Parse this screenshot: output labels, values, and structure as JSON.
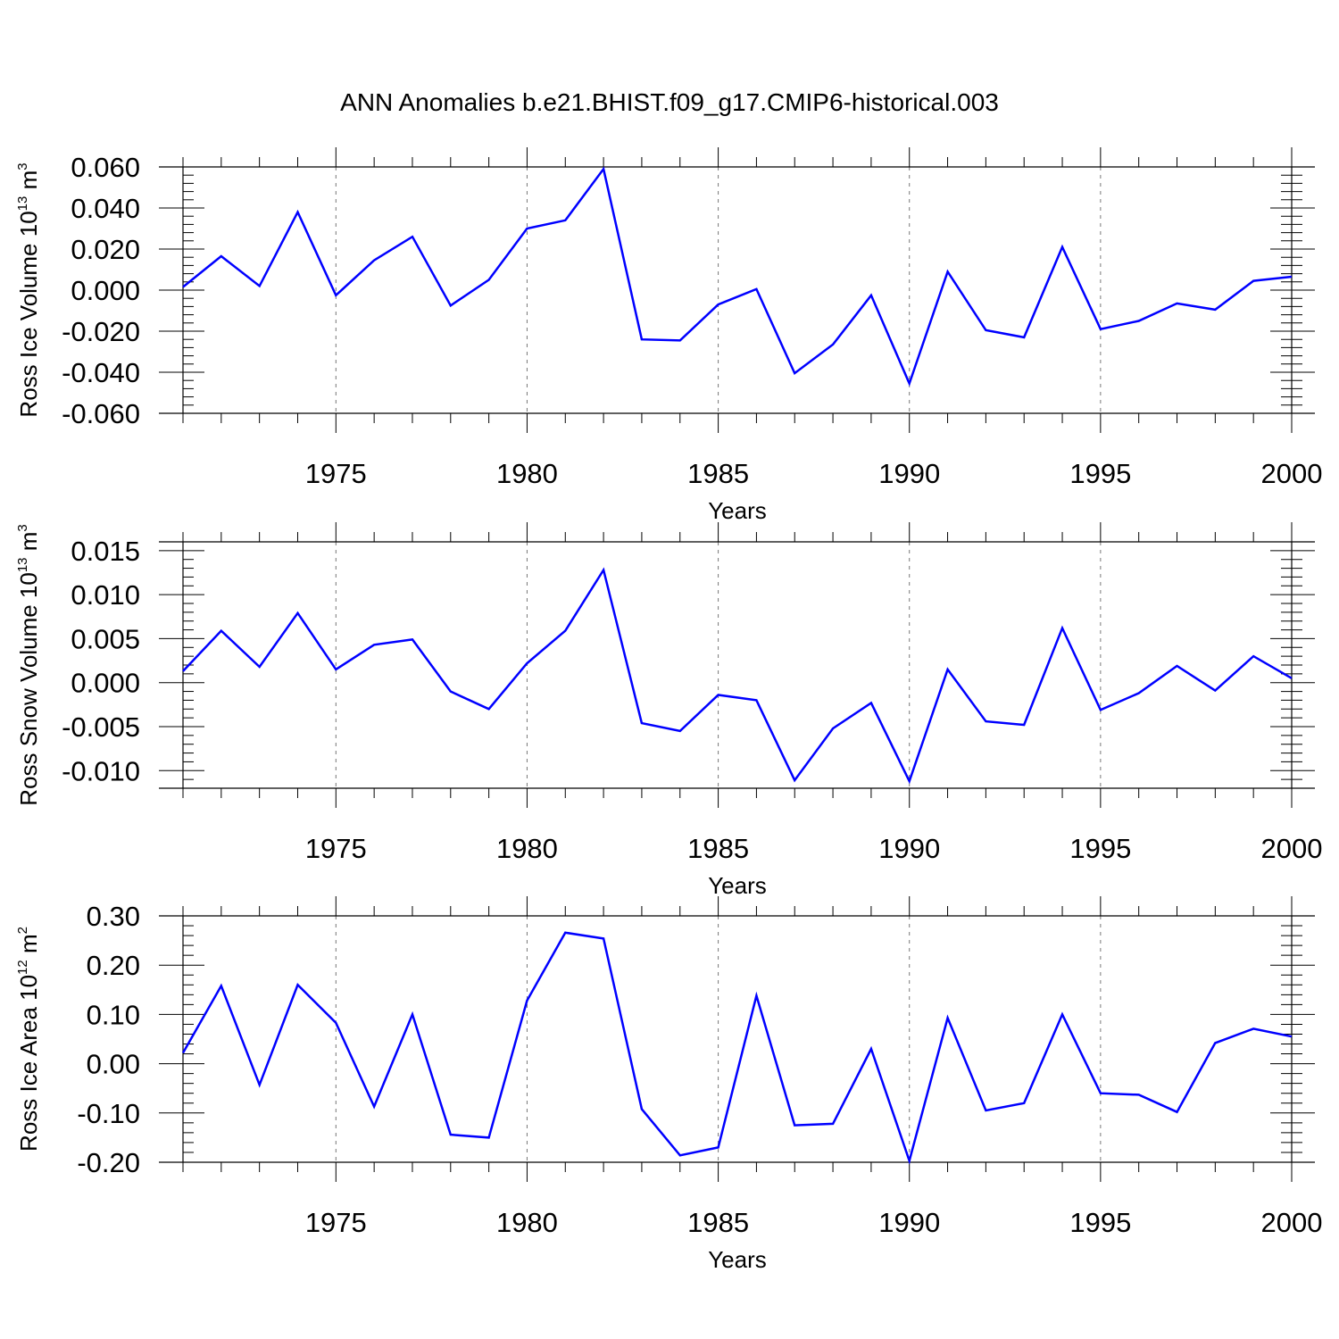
{
  "title": "ANN Anomalies b.e21.BHIST.f09_g17.CMIP6-historical.003",
  "chart_data": [
    {
      "type": "line",
      "ylabel": "Ross Ice Volume 10",
      "ylabel_exp": "13",
      "ylabel_unit": " m",
      "ylabel_unit_exp": "3",
      "xlabel": "Years",
      "xlim": [
        1971,
        2000
      ],
      "ylim": [
        -0.06,
        0.06
      ],
      "yticks": [
        -0.06,
        -0.04,
        -0.02,
        0.0,
        0.02,
        0.04,
        0.06
      ],
      "ytick_labels": [
        "-0.060",
        "-0.040",
        "-0.020",
        "0.000",
        "0.020",
        "0.040",
        "0.060"
      ],
      "xticks": [
        1975,
        1980,
        1985,
        1990,
        1995,
        2000
      ],
      "xtick_labels": [
        "1975",
        "1980",
        "1985",
        "1990",
        "1995",
        "2000"
      ],
      "grid": "vertical-dashed",
      "color": "#0000ff",
      "x": [
        1971,
        1972,
        1973,
        1974,
        1975,
        1976,
        1977,
        1978,
        1979,
        1980,
        1981,
        1982,
        1983,
        1984,
        1985,
        1986,
        1987,
        1988,
        1989,
        1990,
        1991,
        1992,
        1993,
        1994,
        1995,
        1996,
        1997,
        1998,
        1999,
        2000
      ],
      "values": [
        0.0015,
        0.0165,
        0.002,
        0.038,
        -0.0025,
        0.0145,
        0.026,
        -0.0075,
        0.005,
        0.03,
        0.034,
        0.059,
        -0.024,
        -0.0245,
        -0.007,
        0.0005,
        -0.0405,
        -0.0265,
        -0.0025,
        -0.0455,
        0.009,
        -0.0195,
        -0.023,
        0.021,
        -0.019,
        -0.015,
        -0.0065,
        -0.0095,
        0.0045,
        0.0065
      ]
    },
    {
      "type": "line",
      "ylabel": "Ross Snow Volume 10",
      "ylabel_exp": "13",
      "ylabel_unit": " m",
      "ylabel_unit_exp": "3",
      "xlabel": "Years",
      "xlim": [
        1971,
        2000
      ],
      "ylim": [
        -0.012,
        0.016
      ],
      "yticks": [
        -0.01,
        -0.005,
        0.0,
        0.005,
        0.01,
        0.015
      ],
      "ytick_labels": [
        "-0.010",
        "-0.005",
        "0.000",
        "0.005",
        "0.010",
        "0.015"
      ],
      "xticks": [
        1975,
        1980,
        1985,
        1990,
        1995,
        2000
      ],
      "xtick_labels": [
        "1975",
        "1980",
        "1985",
        "1990",
        "1995",
        "2000"
      ],
      "grid": "vertical-dashed",
      "color": "#0000ff",
      "x": [
        1971,
        1972,
        1973,
        1974,
        1975,
        1976,
        1977,
        1978,
        1979,
        1980,
        1981,
        1982,
        1983,
        1984,
        1985,
        1986,
        1987,
        1988,
        1989,
        1990,
        1991,
        1992,
        1993,
        1994,
        1995,
        1996,
        1997,
        1998,
        1999,
        2000
      ],
      "values": [
        0.0013,
        0.0059,
        0.0018,
        0.0079,
        0.0015,
        0.0043,
        0.0049,
        -0.001,
        -0.003,
        0.0022,
        0.0059,
        0.0128,
        -0.0046,
        -0.0055,
        -0.0014,
        -0.002,
        -0.0111,
        -0.0052,
        -0.0023,
        -0.0112,
        0.0015,
        -0.0044,
        -0.0048,
        0.0062,
        -0.0031,
        -0.0012,
        0.0019,
        -0.0009,
        0.003,
        0.0005
      ]
    },
    {
      "type": "line",
      "ylabel": "Ross Ice Area 10",
      "ylabel_exp": "12",
      "ylabel_unit": " m",
      "ylabel_unit_exp": "2",
      "xlabel": "Years",
      "xlim": [
        1971,
        2000
      ],
      "ylim": [
        -0.2,
        0.3
      ],
      "yticks": [
        -0.2,
        -0.1,
        0.0,
        0.1,
        0.2,
        0.3
      ],
      "ytick_labels": [
        "-0.20",
        "-0.10",
        "0.00",
        "0.10",
        "0.20",
        "0.30"
      ],
      "xticks": [
        1975,
        1980,
        1985,
        1990,
        1995,
        2000
      ],
      "xtick_labels": [
        "1975",
        "1980",
        "1985",
        "1990",
        "1995",
        "2000"
      ],
      "grid": "vertical-dashed",
      "color": "#0000ff",
      "x": [
        1971,
        1972,
        1973,
        1974,
        1975,
        1976,
        1977,
        1978,
        1979,
        1980,
        1981,
        1982,
        1983,
        1984,
        1985,
        1986,
        1987,
        1988,
        1989,
        1990,
        1991,
        1992,
        1993,
        1994,
        1995,
        1996,
        1997,
        1998,
        1999,
        2000
      ],
      "values": [
        0.022,
        0.158,
        -0.043,
        0.16,
        0.083,
        -0.087,
        0.1,
        -0.144,
        -0.15,
        0.128,
        0.266,
        0.254,
        -0.092,
        -0.186,
        -0.17,
        0.138,
        -0.125,
        -0.122,
        0.03,
        -0.197,
        0.093,
        -0.095,
        -0.08,
        0.1,
        -0.06,
        -0.063,
        -0.098,
        0.042,
        0.071,
        0.055
      ]
    }
  ]
}
